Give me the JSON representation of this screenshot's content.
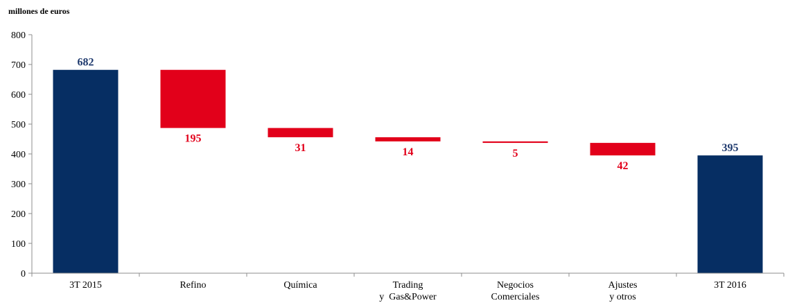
{
  "chart_data": {
    "type": "bar",
    "subtype": "waterfall",
    "unit_label": "millones de euros",
    "ylim": [
      0,
      800
    ],
    "yticks": [
      0,
      100,
      200,
      300,
      400,
      500,
      600,
      700,
      800
    ],
    "grid": false,
    "categories": [
      [
        "3T 2015"
      ],
      [
        "Refino"
      ],
      [
        "Química"
      ],
      [
        "Trading",
        "y  Gas&Power"
      ],
      [
        "Negocios",
        "Comerciales"
      ],
      [
        "Ajustes",
        "y otros"
      ],
      [
        "3T 2016"
      ]
    ],
    "bars": [
      {
        "kind": "total",
        "start": 0,
        "end": 682,
        "label": "682"
      },
      {
        "kind": "decrease",
        "start": 682,
        "end": 487,
        "label": "195"
      },
      {
        "kind": "decrease",
        "start": 487,
        "end": 456,
        "label": "31"
      },
      {
        "kind": "decrease",
        "start": 456,
        "end": 442,
        "label": "14"
      },
      {
        "kind": "decrease",
        "start": 442,
        "end": 437,
        "label": "5"
      },
      {
        "kind": "decrease",
        "start": 437,
        "end": 395,
        "label": "42"
      },
      {
        "kind": "total",
        "start": 0,
        "end": 395,
        "label": "395"
      }
    ],
    "colors": {
      "total": "#062e63",
      "decrease": "#e2001a",
      "total_label": "#1f3a6e",
      "decrease_label": "#e2001a"
    }
  }
}
